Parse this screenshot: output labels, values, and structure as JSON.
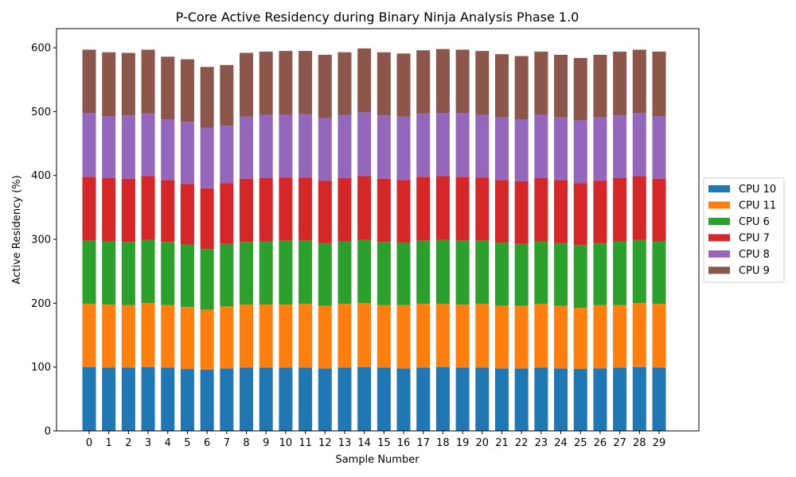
{
  "chart_data": {
    "type": "bar",
    "stacked": true,
    "title": "P-Core Active Residency during Binary Ninja Analysis Phase 1.0",
    "xlabel": "Sample Number",
    "ylabel": "Active Residency (%)",
    "ylim": [
      0,
      630
    ],
    "yticks": [
      0,
      100,
      200,
      300,
      400,
      500,
      600
    ],
    "grid": false,
    "legend_position": "right",
    "categories": [
      "0",
      "1",
      "2",
      "3",
      "4",
      "5",
      "6",
      "7",
      "8",
      "9",
      "10",
      "11",
      "12",
      "13",
      "14",
      "15",
      "16",
      "17",
      "18",
      "19",
      "20",
      "21",
      "22",
      "23",
      "24",
      "25",
      "26",
      "27",
      "28",
      "29"
    ],
    "series": [
      {
        "name": "CPU 10",
        "color": "#1f77b4",
        "values": [
          100,
          99,
          99,
          100,
          99,
          97,
          96,
          98,
          99,
          99,
          99,
          99,
          98,
          99,
          100,
          99,
          98,
          99,
          100,
          99,
          99,
          98,
          98,
          99,
          98,
          97,
          98,
          99,
          100,
          99
        ]
      },
      {
        "name": "CPU 11",
        "color": "#ff7f0e",
        "values": [
          99,
          99,
          98,
          100,
          98,
          97,
          94,
          97,
          99,
          99,
          99,
          100,
          98,
          100,
          100,
          98,
          99,
          100,
          99,
          99,
          100,
          98,
          98,
          100,
          98,
          96,
          99,
          98,
          100,
          100
        ]
      },
      {
        "name": "CPU 6",
        "color": "#2ca02c",
        "values": [
          99,
          99,
          99,
          99,
          99,
          98,
          95,
          98,
          98,
          99,
          100,
          99,
          98,
          98,
          99,
          99,
          98,
          99,
          100,
          100,
          99,
          99,
          97,
          98,
          98,
          98,
          97,
          100,
          99,
          98
        ]
      },
      {
        "name": "CPU 7",
        "color": "#d62728",
        "values": [
          100,
          99,
          99,
          100,
          97,
          95,
          95,
          95,
          99,
          99,
          99,
          99,
          98,
          99,
          100,
          99,
          98,
          100,
          100,
          100,
          99,
          98,
          98,
          99,
          99,
          97,
          98,
          99,
          100,
          98
        ]
      },
      {
        "name": "CPU 8",
        "color": "#9467bd",
        "values": [
          100,
          97,
          99,
          98,
          95,
          97,
          95,
          90,
          97,
          99,
          98,
          99,
          98,
          99,
          100,
          99,
          99,
          99,
          99,
          100,
          98,
          98,
          97,
          99,
          98,
          98,
          99,
          98,
          99,
          98
        ]
      },
      {
        "name": "CPU 9",
        "color": "#8c564b",
        "values": [
          99,
          100,
          98,
          100,
          98,
          98,
          95,
          95,
          100,
          99,
          100,
          99,
          99,
          98,
          100,
          99,
          99,
          99,
          100,
          99,
          100,
          99,
          99,
          99,
          98,
          98,
          98,
          100,
          99,
          101
        ]
      }
    ]
  }
}
